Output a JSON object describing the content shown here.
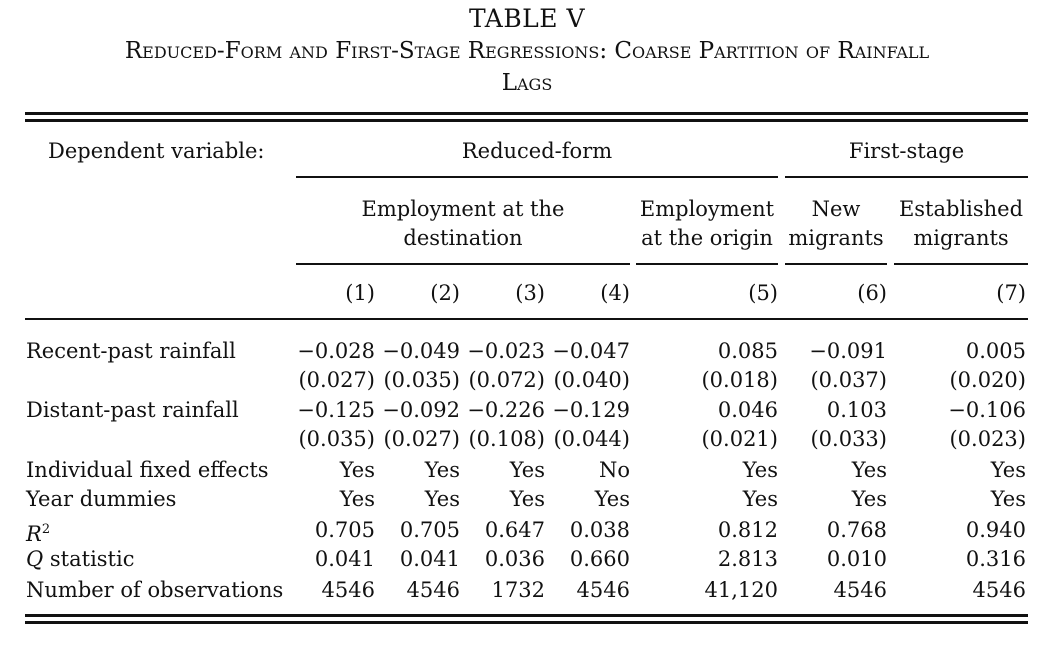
{
  "table_number": "TABLE V",
  "subtitle_line1": "Reduced-Form and First-Stage Regressions: Coarse Partition of Rainfall",
  "subtitle_line2": "Lags",
  "dependent_variable_label": "Dependent variable:",
  "group_headers": {
    "reduced_form": "Reduced-form",
    "first_stage": "First-stage"
  },
  "subgroup_headers": {
    "employment_destination_l1": "Employment at the",
    "employment_destination_l2": "destination",
    "employment_origin_l1": "Employment",
    "employment_origin_l2": "at the origin",
    "new_migrants_l1": "New",
    "new_migrants_l2": "migrants",
    "established_migrants_l1": "Established",
    "established_migrants_l2": "migrants"
  },
  "column_numbers": [
    "(1)",
    "(2)",
    "(3)",
    "(4)",
    "(5)",
    "(6)",
    "(7)"
  ],
  "rows": [
    {
      "label": "Recent-past rainfall",
      "values": [
        "−0.028",
        "−0.049",
        "−0.023",
        "−0.047",
        "0.085",
        "−0.091",
        "0.005"
      ]
    },
    {
      "label": "",
      "values": [
        "(0.027)",
        "(0.035)",
        "(0.072)",
        "(0.040)",
        "(0.018)",
        "(0.037)",
        "(0.020)"
      ]
    },
    {
      "label": "Distant-past rainfall",
      "values": [
        "−0.125",
        "−0.092",
        "−0.226",
        "−0.129",
        "0.046",
        "0.103",
        "−0.106"
      ]
    },
    {
      "label": "",
      "values": [
        "(0.035)",
        "(0.027)",
        "(0.108)",
        "(0.044)",
        "(0.021)",
        "(0.033)",
        "(0.023)"
      ]
    },
    {
      "label": "Individual fixed effects",
      "values": [
        "Yes",
        "Yes",
        "Yes",
        "No",
        "Yes",
        "Yes",
        "Yes"
      ]
    },
    {
      "label": "Year dummies",
      "values": [
        "Yes",
        "Yes",
        "Yes",
        "Yes",
        "Yes",
        "Yes",
        "Yes"
      ]
    },
    {
      "label": "R",
      "label_sup": "2",
      "italic": true,
      "values": [
        "0.705",
        "0.705",
        "0.647",
        "0.038",
        "0.812",
        "0.768",
        "0.940"
      ]
    },
    {
      "label": "Q",
      "label_rest": " statistic",
      "italic": true,
      "values": [
        "0.041",
        "0.041",
        "0.036",
        "0.660",
        "2.813",
        "0.010",
        "0.316"
      ]
    },
    {
      "label": "Number of observations",
      "values": [
        "4546",
        "4546",
        "1732",
        "4546",
        "41,120",
        "4546",
        "4546"
      ]
    }
  ]
}
